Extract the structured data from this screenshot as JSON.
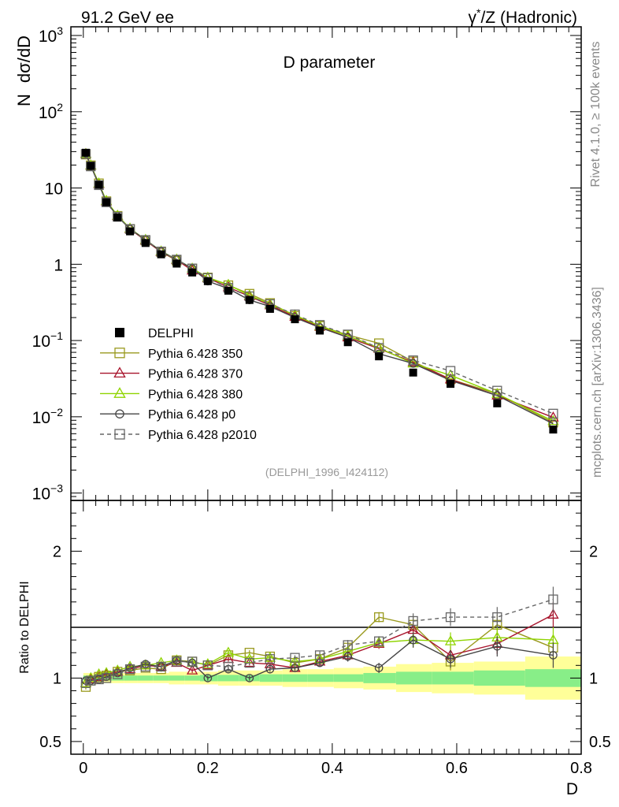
{
  "header": {
    "left": "91.2 GeV ee",
    "right": "γ*/Z (Hadronic)",
    "right_prefix": "γ",
    "right_suffix": "/Z (Hadronic)"
  },
  "side_text": {
    "top": "Rivet 4.1.0, ≥ 100k events",
    "bottom": "mcplots.cern.ch [arXiv:1306.3436]"
  },
  "chart_data": [
    {
      "type": "line",
      "title": "D parameter",
      "ylabel": "N  dσ/dD",
      "ylabel_parts": [
        "N",
        "dσ/dD"
      ],
      "yscale": "log",
      "ylim": [
        0.0008,
        1300
      ],
      "xlim": [
        -0.02,
        0.8
      ],
      "watermark": "(DELPHI_1996_I424112)",
      "ytick_labels": [
        {
          "value": 0.001,
          "base": "10",
          "exp": "−3"
        },
        {
          "value": 0.01,
          "base": "10",
          "exp": "−2"
        },
        {
          "value": 0.1,
          "base": "10",
          "exp": "−1"
        },
        {
          "value": 1,
          "base": "1",
          "exp": ""
        },
        {
          "value": 10,
          "base": "10",
          "exp": ""
        },
        {
          "value": 100,
          "base": "10",
          "exp": "2"
        },
        {
          "value": 1000,
          "base": "10",
          "exp": "3"
        }
      ],
      "x": [
        0.004,
        0.012,
        0.025,
        0.037,
        0.055,
        0.075,
        0.1,
        0.125,
        0.15,
        0.175,
        0.2,
        0.233,
        0.267,
        0.3,
        0.34,
        0.38,
        0.425,
        0.475,
        0.53,
        0.59,
        0.665,
        0.755
      ],
      "data": {
        "name": "DELPHI",
        "values": [
          29,
          19.5,
          11,
          6.5,
          4.1,
          2.7,
          1.9,
          1.35,
          1.02,
          0.78,
          0.6,
          0.45,
          0.34,
          0.26,
          0.19,
          0.135,
          0.095,
          0.062,
          0.038,
          0.027,
          0.015,
          0.0068
        ]
      },
      "series": [
        {
          "name": "Pythia 6.428 350",
          "color": "#9a9a1e",
          "marker": "square",
          "dash": "",
          "values": [
            27.5,
            19.8,
            11.5,
            6.7,
            4.3,
            2.9,
            2.05,
            1.45,
            1.12,
            0.88,
            0.67,
            0.53,
            0.41,
            0.31,
            0.21,
            0.155,
            0.118,
            0.092,
            0.053,
            0.031,
            0.02,
            0.0084
          ]
        },
        {
          "name": "Pythia 6.428 370",
          "color": "#a8142c",
          "marker": "triangle",
          "dash": "",
          "values": [
            28,
            19.7,
            11.3,
            6.7,
            4.3,
            2.9,
            2.05,
            1.45,
            1.14,
            0.83,
            0.66,
            0.5,
            0.38,
            0.29,
            0.205,
            0.152,
            0.11,
            0.078,
            0.052,
            0.031,
            0.019,
            0.0098
          ]
        },
        {
          "name": "Pythia 6.428 380",
          "color": "#8fd400",
          "marker": "triangle",
          "dash": "",
          "values": [
            28,
            19.8,
            11.5,
            6.8,
            4.35,
            2.95,
            2.1,
            1.48,
            1.16,
            0.88,
            0.67,
            0.54,
            0.39,
            0.3,
            0.215,
            0.155,
            0.115,
            0.08,
            0.05,
            0.035,
            0.02,
            0.0088
          ]
        },
        {
          "name": "Pythia 6.428 p0",
          "color": "#444444",
          "marker": "circle",
          "dash": "",
          "values": [
            28.5,
            19.4,
            11.1,
            6.6,
            4.25,
            2.9,
            2.1,
            1.47,
            1.16,
            0.88,
            0.6,
            0.48,
            0.34,
            0.28,
            0.2,
            0.148,
            0.11,
            0.067,
            0.05,
            0.03,
            0.019,
            0.0081
          ]
        },
        {
          "name": "Pythia 6.428 p2010",
          "color": "#666666",
          "marker": "square",
          "dash": "5,4",
          "values": [
            28,
            19.2,
            10.9,
            6.5,
            4.2,
            2.9,
            2.08,
            1.47,
            1.15,
            0.88,
            0.66,
            0.49,
            0.38,
            0.3,
            0.22,
            0.16,
            0.12,
            0.08,
            0.055,
            0.04,
            0.022,
            0.011
          ]
        }
      ]
    },
    {
      "type": "line",
      "ylabel": "Ratio to DELPHI",
      "xlabel": "D",
      "ylim": [
        0.4,
        2.4
      ],
      "xlim": [
        -0.02,
        0.8
      ],
      "ytick_labels": [
        "0.5",
        "1",
        "2"
      ],
      "xtick_labels": [
        "0",
        "0.2",
        "0.4",
        "0.6",
        "0.8"
      ],
      "bands": {
        "inner_color": "#88ee88",
        "outer_color": "#ffff99",
        "inner_halfwidth": [
          0.02,
          0.02,
          0.02,
          0.02,
          0.02,
          0.02,
          0.02,
          0.02,
          0.02,
          0.02,
          0.025,
          0.025,
          0.025,
          0.03,
          0.03,
          0.03,
          0.03,
          0.04,
          0.05,
          0.05,
          0.06,
          0.07
        ],
        "outer_halfwidth": [
          0.04,
          0.04,
          0.04,
          0.04,
          0.04,
          0.04,
          0.04,
          0.04,
          0.05,
          0.05,
          0.05,
          0.06,
          0.06,
          0.06,
          0.07,
          0.07,
          0.08,
          0.09,
          0.11,
          0.12,
          0.13,
          0.17
        ]
      },
      "series": [
        {
          "name": "Pythia 6.428 350",
          "values": [
            0.93,
            0.98,
            1.01,
            1.02,
            1.05,
            1.06,
            1.08,
            1.07,
            1.14,
            1.13,
            1.1,
            1.18,
            1.2,
            1.17,
            1.12,
            1.15,
            1.24,
            1.48,
            1.42,
            1.13,
            1.42,
            1.24
          ],
          "errors": [
            0.02,
            0.02,
            0.02,
            0.02,
            0.02,
            0.02,
            0.02,
            0.02,
            0.02,
            0.02,
            0.02,
            0.02,
            0.02,
            0.02,
            0.02,
            0.03,
            0.04,
            0.04,
            0.06,
            0.07,
            0.08,
            0.1
          ]
        },
        {
          "name": "Pythia 6.428 370",
          "values": [
            0.96,
            0.99,
            1.01,
            1.03,
            1.05,
            1.07,
            1.1,
            1.09,
            1.12,
            1.06,
            1.1,
            1.15,
            1.12,
            1.11,
            1.08,
            1.13,
            1.18,
            1.27,
            1.38,
            1.18,
            1.27,
            1.5
          ],
          "errors": [
            0.02,
            0.02,
            0.02,
            0.02,
            0.02,
            0.02,
            0.02,
            0.02,
            0.02,
            0.02,
            0.02,
            0.02,
            0.02,
            0.02,
            0.02,
            0.03,
            0.04,
            0.04,
            0.06,
            0.07,
            0.08,
            0.1
          ]
        },
        {
          "name": "Pythia 6.428 380",
          "values": [
            0.96,
            1.0,
            1.03,
            1.04,
            1.06,
            1.09,
            1.1,
            1.12,
            1.14,
            1.12,
            1.11,
            1.2,
            1.15,
            1.16,
            1.13,
            1.15,
            1.21,
            1.28,
            1.3,
            1.29,
            1.32,
            1.3
          ],
          "errors": [
            0.02,
            0.02,
            0.02,
            0.02,
            0.02,
            0.02,
            0.02,
            0.02,
            0.02,
            0.02,
            0.02,
            0.02,
            0.02,
            0.02,
            0.02,
            0.03,
            0.04,
            0.04,
            0.06,
            0.07,
            0.08,
            0.1
          ]
        },
        {
          "name": "Pythia 6.428 p0",
          "values": [
            0.98,
            0.98,
            0.99,
            1.01,
            1.04,
            1.08,
            1.11,
            1.09,
            1.14,
            1.12,
            1.0,
            1.07,
            1.0,
            1.07,
            1.08,
            1.12,
            1.17,
            1.08,
            1.3,
            1.15,
            1.25,
            1.18
          ],
          "errors": [
            0.02,
            0.02,
            0.02,
            0.02,
            0.02,
            0.02,
            0.02,
            0.02,
            0.02,
            0.02,
            0.02,
            0.02,
            0.02,
            0.02,
            0.02,
            0.03,
            0.04,
            0.04,
            0.06,
            0.07,
            0.08,
            0.1
          ]
        },
        {
          "name": "Pythia 6.428 p2010",
          "values": [
            0.96,
            0.98,
            0.99,
            1.0,
            1.03,
            1.07,
            1.09,
            1.09,
            1.13,
            1.13,
            1.1,
            1.09,
            1.12,
            1.15,
            1.16,
            1.18,
            1.26,
            1.29,
            1.45,
            1.48,
            1.48,
            1.62
          ],
          "errors": [
            0.02,
            0.02,
            0.02,
            0.02,
            0.02,
            0.02,
            0.02,
            0.02,
            0.02,
            0.02,
            0.02,
            0.02,
            0.02,
            0.02,
            0.02,
            0.03,
            0.04,
            0.04,
            0.06,
            0.07,
            0.08,
            0.1
          ]
        }
      ]
    }
  ]
}
